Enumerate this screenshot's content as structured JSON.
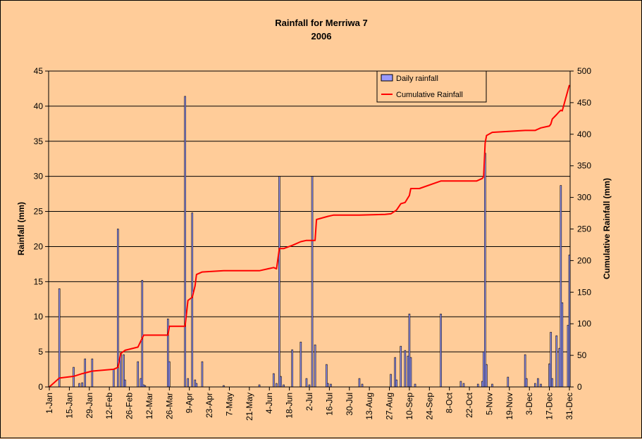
{
  "chart_data": {
    "type": "bar",
    "title": "Rainfall for Merriwa 7",
    "subtitle": "2006",
    "ylabel": "Rainfall (mm)",
    "y2label": "Cumulative Rainfall (mm)",
    "ylim": [
      0,
      45
    ],
    "y2lim": [
      0,
      500
    ],
    "yticks": [
      "0",
      "5",
      "10",
      "15",
      "20",
      "25",
      "30",
      "35",
      "40",
      "45"
    ],
    "y2ticks": [
      "0",
      "50",
      "100",
      "150",
      "200",
      "250",
      "300",
      "350",
      "400",
      "450",
      "500"
    ],
    "x_tick_labels": [
      "1-Jan",
      "15-Jan",
      "29-Jan",
      "12-Feb",
      "26-Feb",
      "12-Mar",
      "26-Mar",
      "9-Apr",
      "23-Apr",
      "7-May",
      "21-May",
      "4-Jun",
      "18-Jun",
      "2-Jul",
      "16-Jul",
      "30-Jul",
      "13-Aug",
      "27-Aug",
      "10-Sep",
      "24-Sep",
      "8-Oct",
      "22-Oct",
      "5-Nov",
      "19-Nov",
      "3-Dec",
      "17-Dec",
      "31-Dec"
    ],
    "grid": true,
    "legend_position": "top-right",
    "colors": {
      "daily": "#9999FF",
      "cumulative": "#FF0000",
      "background": "#FFCC99"
    },
    "series": [
      {
        "name": "Daily rainfall",
        "type": "bar",
        "axis": "left",
        "x_day": [
          8,
          18,
          22,
          24,
          26,
          31,
          46,
          49,
          51,
          53,
          54,
          63,
          65,
          66,
          67,
          68,
          84,
          85,
          96,
          98,
          101,
          103,
          104,
          108,
          123,
          148,
          158,
          160,
          162,
          163,
          165,
          171,
          177,
          181,
          183,
          185,
          187,
          195,
          196,
          198,
          218,
          220,
          240,
          243,
          244,
          247,
          250,
          252,
          253,
          254,
          257,
          275,
          289,
          291,
          301,
          304,
          305,
          306,
          307,
          311,
          322,
          334,
          335,
          341,
          343,
          345,
          351,
          352,
          353,
          356,
          358,
          359,
          360,
          364,
          365
        ],
        "values": [
          14,
          2.8,
          0.5,
          0.6,
          4,
          4,
          2.5,
          22.5,
          4.8,
          4.6,
          1,
          3.6,
          1.2,
          15.2,
          0.3,
          0.2,
          9.7,
          3.6,
          41.4,
          1.2,
          24.8,
          1,
          0.5,
          3.6,
          0.2,
          0.3,
          1.9,
          0.5,
          30,
          1.5,
          0.3,
          5.3,
          6.4,
          1.2,
          0.3,
          30,
          6,
          3.2,
          0.5,
          0.4,
          1.2,
          0.4,
          1.8,
          4.2,
          1,
          5.8,
          5.2,
          4.4,
          10.4,
          4.2,
          0.4,
          10.4,
          0.8,
          0.5,
          0.4,
          0.8,
          5,
          33.3,
          3.2,
          0.4,
          1.4,
          4.6,
          1.2,
          0.5,
          1.2,
          0.4,
          3.3,
          7.8,
          1.2,
          7.3,
          5.5,
          28.7,
          12,
          8.8,
          18.8
        ]
      },
      {
        "name": "Cumulative Rainfall",
        "type": "line",
        "axis": "right",
        "x_day": [
          1,
          8,
          18,
          24,
          31,
          46,
          49,
          51,
          54,
          63,
          67,
          84,
          85,
          96,
          98,
          101,
          103,
          104,
          108,
          123,
          148,
          158,
          160,
          162,
          165,
          171,
          177,
          181,
          185,
          187,
          188,
          196,
          200,
          218,
          236,
          240,
          244,
          247,
          250,
          253,
          254,
          260,
          275,
          300,
          304,
          305,
          306,
          307,
          311,
          334,
          341,
          345,
          349,
          351,
          352,
          353,
          356,
          358,
          359,
          360,
          364,
          365
        ],
        "values": [
          0,
          14,
          16.8,
          21,
          25,
          28,
          31,
          53,
          58,
          63,
          82,
          82,
          96,
          96,
          137,
          142,
          160,
          178,
          182,
          184,
          184,
          189,
          187,
          219,
          219,
          224,
          230,
          232,
          232,
          232,
          265,
          270,
          272,
          272,
          273,
          274,
          280,
          290,
          292,
          303,
          314,
          314,
          326,
          326,
          330,
          333,
          386,
          398,
          403,
          406,
          406,
          410,
          412,
          413,
          416,
          424,
          431,
          436,
          438,
          437,
          470,
          478
        ]
      }
    ]
  }
}
